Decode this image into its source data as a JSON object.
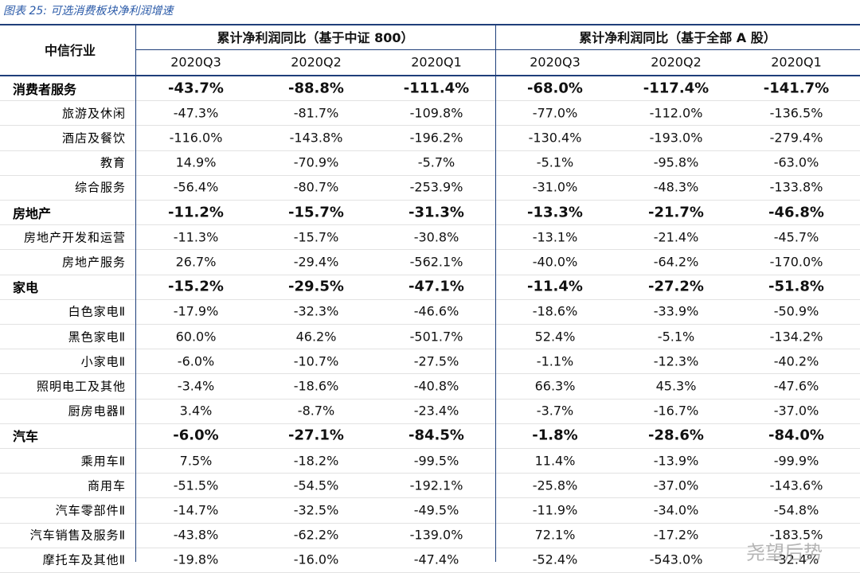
{
  "table": {
    "caption": "图表 25:  可选消费板块净利润增速",
    "corner": "中信行业",
    "groups": [
      {
        "title": "累计净利润同比（基于中证 800）",
        "columns": [
          "2020Q3",
          "2020Q2",
          "2020Q1"
        ]
      },
      {
        "title": "累计净利润同比（基于全部 A 股）",
        "columns": [
          "2020Q3",
          "2020Q2",
          "2020Q1"
        ]
      }
    ],
    "sections": [
      {
        "name": "消费者服务",
        "values": [
          "-43.7%",
          "-88.8%",
          "-111.4%",
          "-68.0%",
          "-117.4%",
          "-141.7%"
        ],
        "items": [
          {
            "name": "旅游及休闲",
            "values": [
              "-47.3%",
              "-81.7%",
              "-109.8%",
              "-77.0%",
              "-112.0%",
              "-136.5%"
            ]
          },
          {
            "name": "酒店及餐饮",
            "values": [
              "-116.0%",
              "-143.8%",
              "-196.2%",
              "-130.4%",
              "-193.0%",
              "-279.4%"
            ]
          },
          {
            "name": "教育",
            "values": [
              "14.9%",
              "-70.9%",
              "-5.7%",
              "-5.1%",
              "-95.8%",
              "-63.0%"
            ]
          },
          {
            "name": "综合服务",
            "values": [
              "-56.4%",
              "-80.7%",
              "-253.9%",
              "-31.0%",
              "-48.3%",
              "-133.8%"
            ]
          }
        ]
      },
      {
        "name": "房地产",
        "values": [
          "-11.2%",
          "-15.7%",
          "-31.3%",
          "-13.3%",
          "-21.7%",
          "-46.8%"
        ],
        "items": [
          {
            "name": "房地产开发和运营",
            "values": [
              "-11.3%",
              "-15.7%",
              "-30.8%",
              "-13.1%",
              "-21.4%",
              "-45.7%"
            ]
          },
          {
            "name": "房地产服务",
            "values": [
              "26.7%",
              "-29.4%",
              "-562.1%",
              "-40.0%",
              "-64.2%",
              "-170.0%"
            ]
          }
        ]
      },
      {
        "name": "家电",
        "values": [
          "-15.2%",
          "-29.5%",
          "-47.1%",
          "-11.4%",
          "-27.2%",
          "-51.8%"
        ],
        "items": [
          {
            "name": "白色家电Ⅱ",
            "values": [
              "-17.9%",
              "-32.3%",
              "-46.6%",
              "-18.6%",
              "-33.9%",
              "-50.9%"
            ]
          },
          {
            "name": "黑色家电Ⅱ",
            "values": [
              "60.0%",
              "46.2%",
              "-501.7%",
              "52.4%",
              "-5.1%",
              "-134.2%"
            ]
          },
          {
            "name": "小家电Ⅱ",
            "values": [
              "-6.0%",
              "-10.7%",
              "-27.5%",
              "-1.1%",
              "-12.3%",
              "-40.2%"
            ]
          },
          {
            "name": "照明电工及其他",
            "values": [
              "-3.4%",
              "-18.6%",
              "-40.8%",
              "66.3%",
              "45.3%",
              "-47.6%"
            ]
          },
          {
            "name": "厨房电器Ⅱ",
            "values": [
              "3.4%",
              "-8.7%",
              "-23.4%",
              "-3.7%",
              "-16.7%",
              "-37.0%"
            ]
          }
        ]
      },
      {
        "name": "汽车",
        "values": [
          "-6.0%",
          "-27.1%",
          "-84.5%",
          "-1.8%",
          "-28.6%",
          "-84.0%"
        ],
        "items": [
          {
            "name": "乘用车Ⅱ",
            "values": [
              "7.5%",
              "-18.2%",
              "-99.5%",
              "11.4%",
              "-13.9%",
              "-99.9%"
            ]
          },
          {
            "name": "商用车",
            "values": [
              "-51.5%",
              "-54.5%",
              "-192.1%",
              "-25.8%",
              "-37.0%",
              "-143.6%"
            ]
          },
          {
            "name": "汽车零部件Ⅱ",
            "values": [
              "-14.7%",
              "-32.5%",
              "-49.5%",
              "-11.9%",
              "-34.0%",
              "-54.8%"
            ]
          },
          {
            "name": "汽车销售及服务Ⅱ",
            "values": [
              "-43.8%",
              "-62.2%",
              "-139.0%",
              "72.1%",
              "-17.2%",
              "-183.5%"
            ]
          },
          {
            "name": "摩托车及其他Ⅱ",
            "values": [
              "-19.8%",
              "-16.0%",
              "-47.4%",
              "-52.4%",
              "-543.0%",
              "-32.4%"
            ]
          }
        ]
      }
    ],
    "watermark": "尧望后势"
  }
}
